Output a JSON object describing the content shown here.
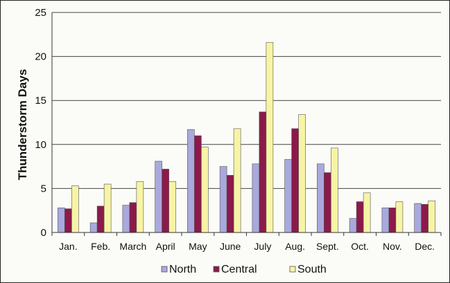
{
  "chart_data": {
    "type": "bar",
    "ylabel": "Thunderstorm Days",
    "xlabel": "",
    "ylim": [
      0,
      25
    ],
    "yticks": [
      0,
      5,
      10,
      15,
      20,
      25
    ],
    "grid": true,
    "legend_position": "bottom",
    "categories": [
      "Jan.",
      "Feb.",
      "March",
      "April",
      "May",
      "June",
      "July",
      "Aug.",
      "Sept.",
      "Oct.",
      "Nov.",
      "Dec."
    ],
    "series": [
      {
        "name": "North",
        "color": "#a9a9de",
        "values": [
          2.8,
          1.1,
          3.1,
          8.1,
          11.7,
          7.5,
          7.8,
          8.3,
          7.8,
          1.6,
          2.8,
          3.3
        ]
      },
      {
        "name": "Central",
        "color": "#8b1a4a",
        "values": [
          2.7,
          3.0,
          3.4,
          7.2,
          11.0,
          6.5,
          13.7,
          11.8,
          6.8,
          3.5,
          2.8,
          3.2
        ]
      },
      {
        "name": "South",
        "color": "#f7f4a6",
        "values": [
          5.3,
          5.5,
          5.8,
          5.8,
          9.7,
          11.8,
          21.6,
          13.4,
          9.6,
          4.5,
          3.5,
          3.6
        ]
      }
    ]
  }
}
